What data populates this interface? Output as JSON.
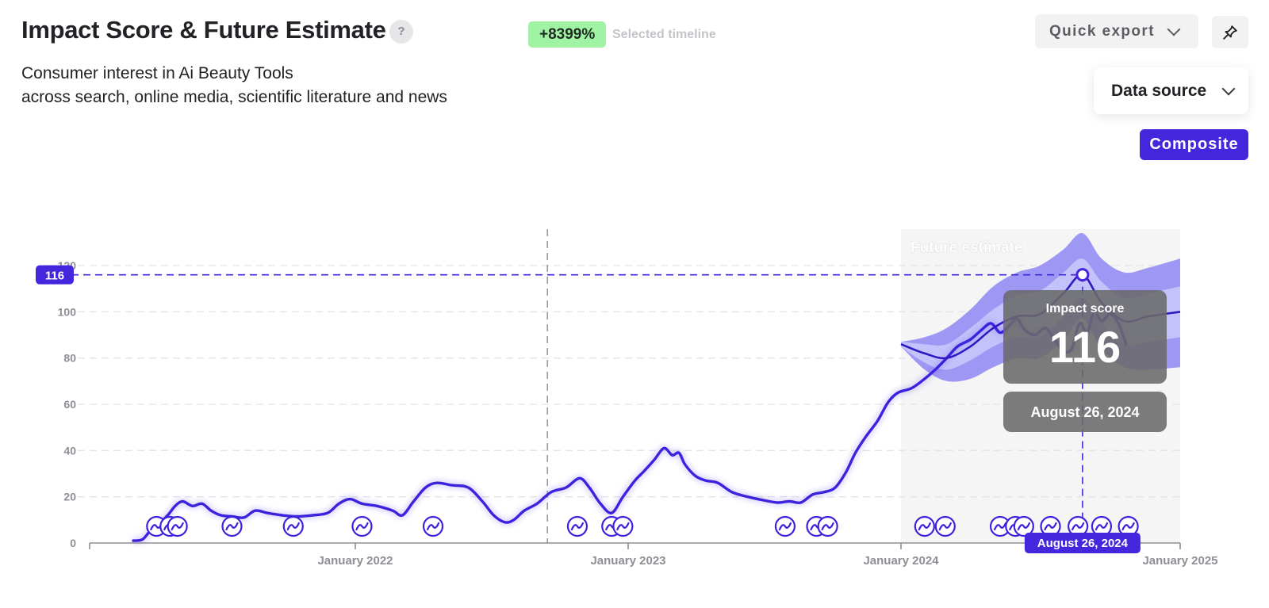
{
  "header": {
    "title": "Impact Score & Future Estimate",
    "help": "?",
    "growth": "+8399%",
    "growth_label": "Selected timeline",
    "subtitle_line1": "Consumer interest in Ai Beauty Tools",
    "subtitle_line2": "across search, online media, scientific literature and news"
  },
  "toolbar": {
    "quick_export": "Quick export",
    "data_source": "Data source",
    "composite": "Composite"
  },
  "colors": {
    "accent": "#4426dc",
    "line": "#3d22dd",
    "band_outer": "#9f97f4",
    "band_inner": "#c4c2fb",
    "forecast_bg": "#f5f5f5",
    "growth_badge": "#9ff3a3"
  },
  "chart_data": {
    "type": "line",
    "title": "",
    "xlabel": "",
    "ylabel": "",
    "x_ticks": [
      "January 2022",
      "January 2023",
      "January 2024",
      "January 2025"
    ],
    "y_ticks": [
      0,
      20,
      40,
      60,
      80,
      100,
      120
    ],
    "ylim": [
      0,
      125
    ],
    "xlim": [
      "2021-01-01",
      "2025-01-01"
    ],
    "grid": true,
    "forecast_label": "Future estimate",
    "forecast_start": "2024-01-01",
    "selected_date_line": "2022-09-15",
    "series": [
      {
        "type": "history",
        "points": [
          [
            "2021-03-10",
            1
          ],
          [
            "2021-03-22",
            1.5
          ],
          [
            "2021-04-01",
            5
          ],
          [
            "2021-04-12",
            8
          ],
          [
            "2021-04-25",
            12
          ],
          [
            "2021-05-05",
            16
          ],
          [
            "2021-05-15",
            18
          ],
          [
            "2021-05-28",
            16
          ],
          [
            "2021-06-10",
            17
          ],
          [
            "2021-06-22",
            14
          ],
          [
            "2021-07-05",
            12
          ],
          [
            "2021-07-20",
            11.5
          ],
          [
            "2021-08-05",
            11
          ],
          [
            "2021-08-20",
            14
          ],
          [
            "2021-09-05",
            13
          ],
          [
            "2021-09-25",
            12
          ],
          [
            "2021-10-15",
            11.5
          ],
          [
            "2021-11-05",
            12
          ],
          [
            "2021-11-25",
            13
          ],
          [
            "2021-12-10",
            17
          ],
          [
            "2021-12-25",
            19
          ],
          [
            "2022-01-10",
            17
          ],
          [
            "2022-01-30",
            16
          ],
          [
            "2022-02-20",
            14
          ],
          [
            "2022-03-05",
            12
          ],
          [
            "2022-03-20",
            18
          ],
          [
            "2022-04-05",
            24
          ],
          [
            "2022-04-20",
            26
          ],
          [
            "2022-05-10",
            25
          ],
          [
            "2022-06-01",
            24
          ],
          [
            "2022-06-20",
            18
          ],
          [
            "2022-07-05",
            12
          ],
          [
            "2022-07-20",
            9
          ],
          [
            "2022-08-01",
            10
          ],
          [
            "2022-08-15",
            14
          ],
          [
            "2022-09-01",
            17
          ],
          [
            "2022-09-20",
            22
          ],
          [
            "2022-10-10",
            24
          ],
          [
            "2022-10-28",
            28
          ],
          [
            "2022-11-10",
            24
          ],
          [
            "2022-11-25",
            17
          ],
          [
            "2022-12-10",
            13
          ],
          [
            "2022-12-25",
            20
          ],
          [
            "2023-01-10",
            27
          ],
          [
            "2023-01-22",
            31
          ],
          [
            "2023-02-05",
            36
          ],
          [
            "2023-02-18",
            41
          ],
          [
            "2023-03-01",
            38
          ],
          [
            "2023-03-10",
            39
          ],
          [
            "2023-03-18",
            34
          ],
          [
            "2023-04-01",
            29
          ],
          [
            "2023-04-15",
            27
          ],
          [
            "2023-05-01",
            26
          ],
          [
            "2023-05-20",
            22
          ],
          [
            "2023-06-10",
            20
          ],
          [
            "2023-07-01",
            18.5
          ],
          [
            "2023-07-20",
            17.5
          ],
          [
            "2023-08-05",
            18
          ],
          [
            "2023-08-20",
            17.5
          ],
          [
            "2023-09-05",
            21
          ],
          [
            "2023-09-20",
            22
          ],
          [
            "2023-10-05",
            24
          ],
          [
            "2023-10-20",
            31
          ],
          [
            "2023-11-01",
            39
          ],
          [
            "2023-11-15",
            46
          ],
          [
            "2023-12-01",
            53
          ],
          [
            "2023-12-15",
            61
          ],
          [
            "2023-12-28",
            65
          ],
          [
            "2024-01-15",
            67
          ],
          [
            "2024-02-01",
            71
          ],
          [
            "2024-02-15",
            75
          ],
          [
            "2024-03-01",
            80
          ],
          [
            "2024-03-15",
            85
          ],
          [
            "2024-04-01",
            88
          ],
          [
            "2024-04-15",
            92
          ],
          [
            "2024-04-28",
            95
          ],
          [
            "2024-05-10",
            91
          ],
          [
            "2024-05-22",
            94
          ],
          [
            "2024-06-01",
            97
          ],
          [
            "2024-06-12",
            92
          ],
          [
            "2024-06-25",
            90
          ],
          [
            "2024-07-08",
            93
          ],
          [
            "2024-07-20",
            88
          ],
          [
            "2024-08-01",
            83
          ],
          [
            "2024-08-12",
            84
          ],
          [
            "2024-08-22",
            95
          ],
          [
            "2024-09-01",
            91
          ],
          [
            "2024-09-10",
            100
          ],
          [
            "2024-09-20",
            96
          ],
          [
            "2024-10-01",
            99
          ],
          [
            "2024-10-12",
            95
          ],
          [
            "2024-10-22",
            86
          ]
        ]
      }
    ],
    "forecast": {
      "points": [
        [
          "2024-01-01",
          86
        ],
        [
          "2024-02-01",
          82
        ],
        [
          "2024-03-01",
          80
        ],
        [
          "2024-04-01",
          85
        ],
        [
          "2024-05-01",
          93
        ],
        [
          "2024-06-01",
          98
        ],
        [
          "2024-07-01",
          99
        ],
        [
          "2024-08-01",
          108
        ],
        [
          "2024-08-26",
          116
        ],
        [
          "2024-09-20",
          104
        ],
        [
          "2024-10-20",
          96
        ],
        [
          "2024-11-20",
          98
        ],
        [
          "2025-01-01",
          100
        ]
      ],
      "inner_upper": [
        [
          "2024-01-01",
          87
        ],
        [
          "2024-02-01",
          86
        ],
        [
          "2024-03-01",
          86
        ],
        [
          "2024-04-01",
          93
        ],
        [
          "2024-05-01",
          101
        ],
        [
          "2024-06-01",
          107
        ],
        [
          "2024-07-01",
          109
        ],
        [
          "2024-08-01",
          117
        ],
        [
          "2024-08-26",
          123
        ],
        [
          "2024-09-20",
          113
        ],
        [
          "2024-10-20",
          106
        ],
        [
          "2024-11-20",
          108
        ],
        [
          "2025-01-01",
          111
        ]
      ],
      "inner_lower": [
        [
          "2024-01-01",
          85
        ],
        [
          "2024-02-01",
          78
        ],
        [
          "2024-03-01",
          75
        ],
        [
          "2024-04-01",
          79
        ],
        [
          "2024-05-01",
          85
        ],
        [
          "2024-06-01",
          89
        ],
        [
          "2024-07-01",
          89
        ],
        [
          "2024-08-01",
          98
        ],
        [
          "2024-08-26",
          106
        ],
        [
          "2024-09-20",
          95
        ],
        [
          "2024-10-20",
          86
        ],
        [
          "2024-11-20",
          87
        ],
        [
          "2025-01-01",
          89
        ]
      ],
      "outer_upper": [
        [
          "2024-01-01",
          87
        ],
        [
          "2024-02-01",
          89
        ],
        [
          "2024-03-01",
          93
        ],
        [
          "2024-04-01",
          101
        ],
        [
          "2024-05-01",
          111
        ],
        [
          "2024-06-01",
          117
        ],
        [
          "2024-07-01",
          120
        ],
        [
          "2024-08-01",
          127
        ],
        [
          "2024-08-26",
          134
        ],
        [
          "2024-09-20",
          123
        ],
        [
          "2024-10-20",
          117
        ],
        [
          "2024-11-20",
          119
        ],
        [
          "2025-01-01",
          123
        ]
      ],
      "outer_lower": [
        [
          "2024-01-01",
          85
        ],
        [
          "2024-02-01",
          75
        ],
        [
          "2024-03-01",
          70
        ],
        [
          "2024-04-01",
          71
        ],
        [
          "2024-05-01",
          76
        ],
        [
          "2024-06-01",
          80
        ],
        [
          "2024-07-01",
          80
        ],
        [
          "2024-08-01",
          88
        ],
        [
          "2024-08-26",
          97
        ],
        [
          "2024-09-20",
          84
        ],
        [
          "2024-10-20",
          76
        ],
        [
          "2024-11-20",
          75
        ],
        [
          "2025-01-01",
          76
        ]
      ]
    },
    "selected_point": {
      "date": "2024-08-26",
      "value": 116,
      "value_label": "116",
      "date_label": "August 26, 2024"
    },
    "tooltip_title": "Impact score",
    "event_markers": [
      "2021-04-10",
      "2021-04-28",
      "2021-05-08",
      "2021-07-20",
      "2021-10-10",
      "2022-01-10",
      "2022-04-15",
      "2022-10-25",
      "2022-12-10",
      "2022-12-25",
      "2023-07-30",
      "2023-09-10",
      "2023-09-25",
      "2024-02-01",
      "2024-02-28",
      "2024-05-10",
      "2024-05-30",
      "2024-06-10",
      "2024-07-15",
      "2024-08-20",
      "2024-09-20",
      "2024-10-25"
    ]
  }
}
